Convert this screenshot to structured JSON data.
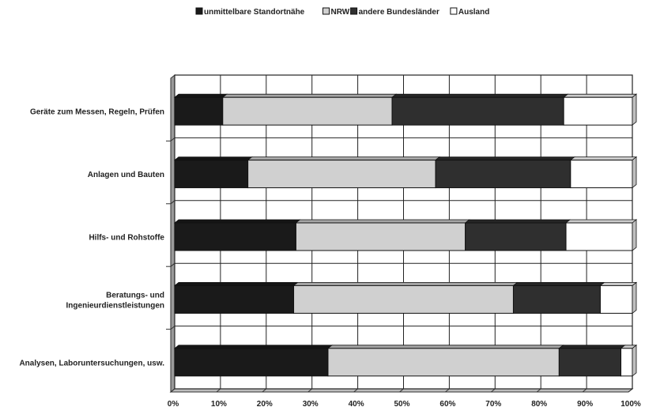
{
  "chart_data": {
    "type": "bar",
    "orientation": "horizontal",
    "stacked": "percent",
    "categories": [
      "Geräte zum Messen, Regeln, Prüfen",
      "Anlagen und Bauten",
      "Hilfs- und Rohstoffe",
      "Beratungs- und Ingenieurdienstleistungen",
      "Analysen, Laboruntersuchungen, usw."
    ],
    "series": [
      {
        "name": "unmittelbare Standortnähe",
        "color": "#1a1a1a",
        "values": [
          10.5,
          16,
          26.5,
          26,
          33.5
        ]
      },
      {
        "name": "NRW",
        "color": "#d0d0d0",
        "values": [
          37,
          41,
          37,
          48,
          50.5
        ]
      },
      {
        "name": "andere Bundesländer",
        "color": "#2f2f2f",
        "values": [
          37.5,
          29.5,
          22,
          19,
          13.5
        ]
      },
      {
        "name": "Ausland",
        "color": "#ffffff",
        "values": [
          15,
          13.5,
          14.5,
          7,
          2.5
        ]
      }
    ],
    "xlim": [
      0,
      100
    ],
    "xticks": [
      "0%",
      "10%",
      "20%",
      "30%",
      "40%",
      "50%",
      "60%",
      "70%",
      "80%",
      "90%",
      "100%"
    ],
    "grid": true,
    "legend_position": "top"
  }
}
